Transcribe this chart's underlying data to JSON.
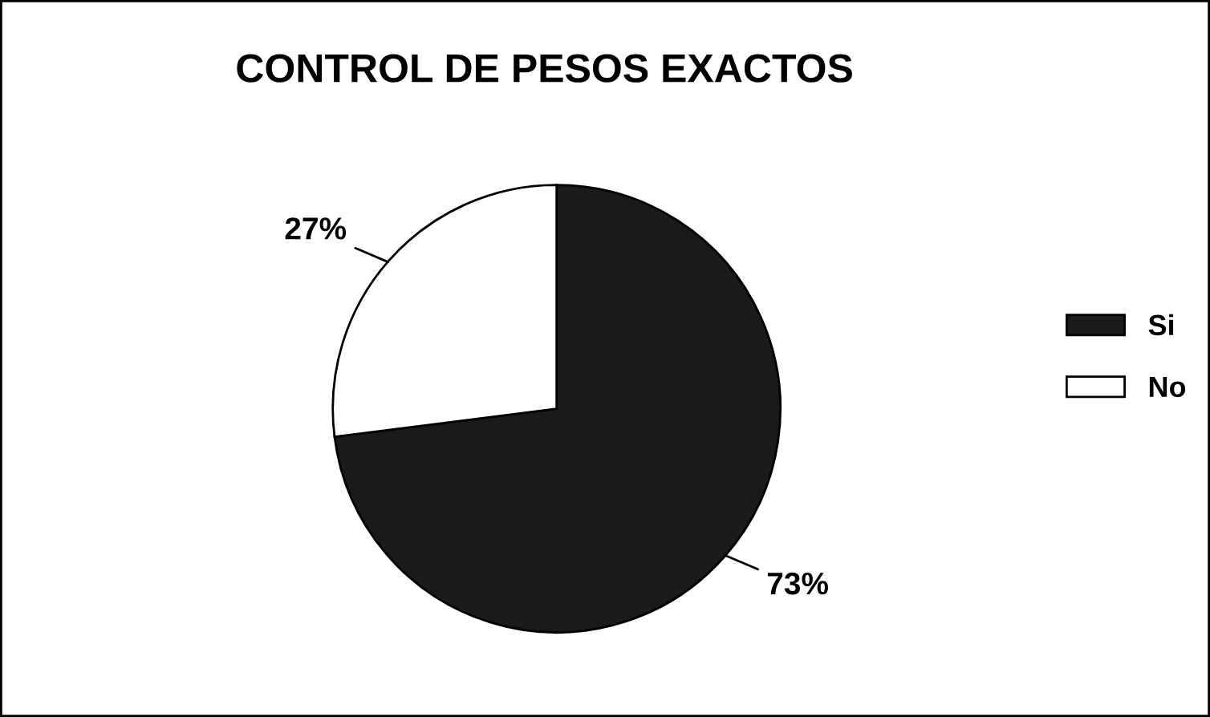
{
  "chart_data": {
    "type": "pie",
    "title": "CONTROL DE PESOS EXACTOS",
    "categories": [
      "Si",
      "No"
    ],
    "values": [
      73,
      27
    ],
    "colors": [
      "#1a1a1a",
      "#ffffff"
    ],
    "value_labels": [
      "73%",
      "27%"
    ],
    "legend": "right"
  }
}
